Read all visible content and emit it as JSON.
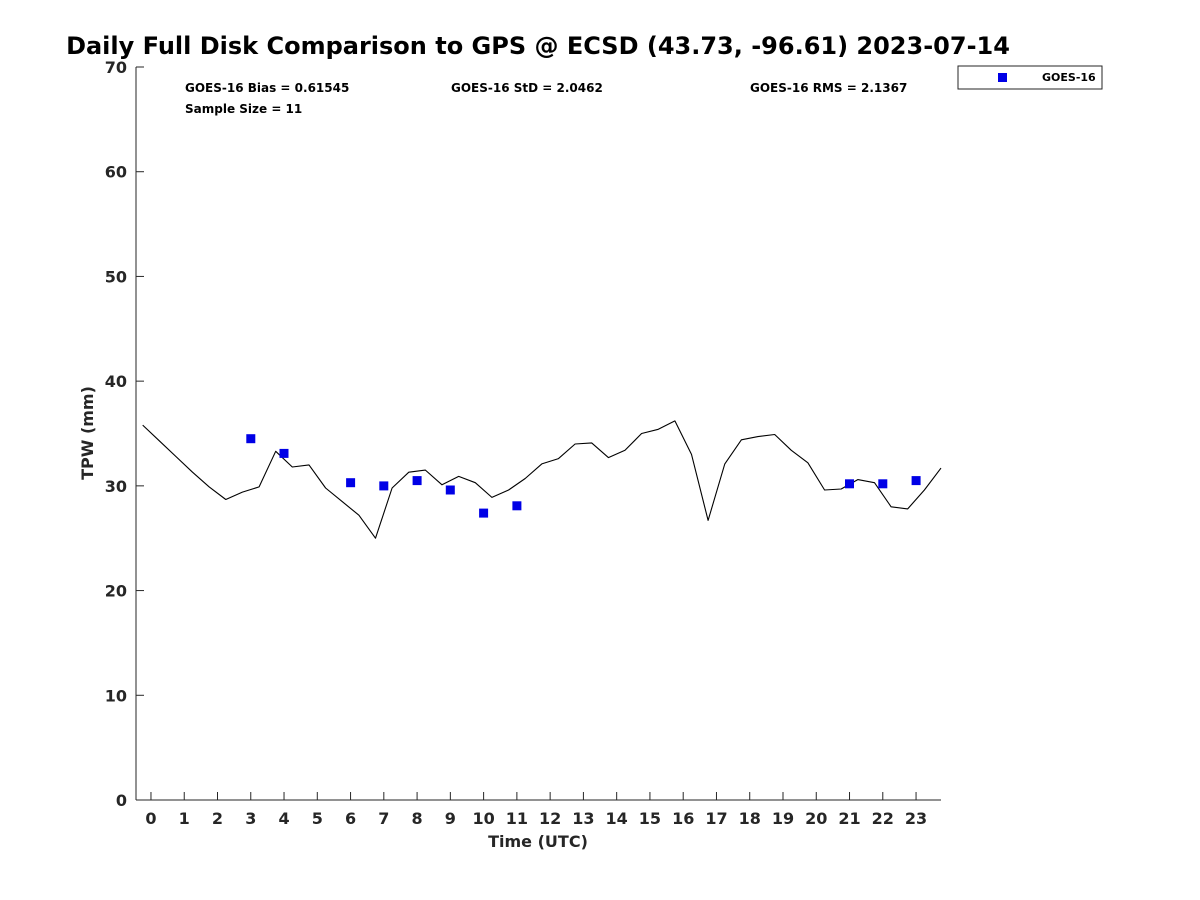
{
  "title": "Daily Full Disk Comparison to GPS @ ECSD (43.73, -96.61) 2023-07-14",
  "stats": {
    "bias": "GOES-16 Bias = 0.61545",
    "std": "GOES-16 StD = 2.0462",
    "rms": "GOES-16 RMS = 2.1367",
    "sample_size": "Sample Size = 11"
  },
  "legend": {
    "placement": "top-right-outside",
    "entries": [
      "GOES-16"
    ]
  },
  "colors": {
    "goes_marker": "#0000e6",
    "gps_line": "#000000",
    "axis": "#262626"
  },
  "chart_data": {
    "type": "scatter",
    "title": "Daily Full Disk Comparison to GPS @ ECSD (43.73, -96.61) 2023-07-14",
    "xlabel": "Time (UTC)",
    "ylabel": "TPW (mm)",
    "xlim": [
      -0.45,
      23.75
    ],
    "ylim": [
      0,
      70
    ],
    "xticks": [
      "0",
      "1",
      "2",
      "3",
      "4",
      "5",
      "6",
      "7",
      "8",
      "9",
      "10",
      "11",
      "12",
      "13",
      "14",
      "15",
      "16",
      "17",
      "18",
      "19",
      "20",
      "21",
      "22",
      "23"
    ],
    "yticks": [
      "0",
      "10",
      "20",
      "30",
      "40",
      "50",
      "60",
      "70"
    ],
    "grid": false,
    "series": [
      {
        "name": "GOES-16",
        "kind": "scatter",
        "marker": "square",
        "x": [
          3,
          4,
          6,
          7,
          8,
          9,
          10,
          11,
          21,
          22,
          23
        ],
        "y": [
          34.5,
          33.1,
          30.3,
          30.0,
          30.5,
          29.6,
          27.4,
          28.1,
          30.2,
          30.2,
          30.5
        ]
      },
      {
        "kind": "line",
        "x": [
          -0.25,
          0.25,
          0.75,
          1.25,
          1.75,
          2.25,
          2.75,
          3.25,
          3.75,
          4.25,
          4.75,
          5.25,
          5.75,
          6.25,
          6.75,
          7.25,
          7.75,
          8.25,
          8.75,
          9.25,
          9.75,
          10.25,
          10.75,
          11.25,
          11.75,
          12.25,
          12.75,
          13.25,
          13.75,
          14.25,
          14.75,
          15.25,
          15.75,
          16.25,
          16.75,
          17.25,
          17.75,
          18.25,
          18.75,
          19.25,
          19.75,
          20.25,
          20.75,
          21.25,
          21.75,
          22.25,
          22.75,
          23.25,
          23.75
        ],
        "y": [
          35.8,
          34.3,
          32.8,
          31.3,
          29.9,
          28.7,
          29.4,
          29.9,
          33.3,
          31.8,
          32.0,
          29.8,
          28.5,
          27.2,
          25.0,
          29.8,
          31.3,
          31.5,
          30.1,
          30.9,
          30.3,
          28.9,
          29.6,
          30.7,
          32.1,
          32.6,
          34.0,
          34.1,
          32.7,
          33.4,
          35.0,
          35.4,
          36.2,
          33.0,
          26.7,
          32.1,
          34.4,
          34.7,
          34.9,
          33.4,
          32.2,
          29.6,
          29.7,
          30.6,
          30.3,
          28.0,
          27.8,
          29.6,
          31.7
        ]
      }
    ]
  },
  "x_tick_positions": [
    0,
    1,
    2,
    3,
    4,
    5,
    6,
    7,
    8,
    9,
    10,
    11,
    12,
    13,
    14,
    15,
    16,
    17,
    18,
    19,
    20,
    21,
    22,
    23
  ],
  "y_tick_positions": [
    0,
    10,
    20,
    30,
    40,
    50,
    60,
    70
  ]
}
